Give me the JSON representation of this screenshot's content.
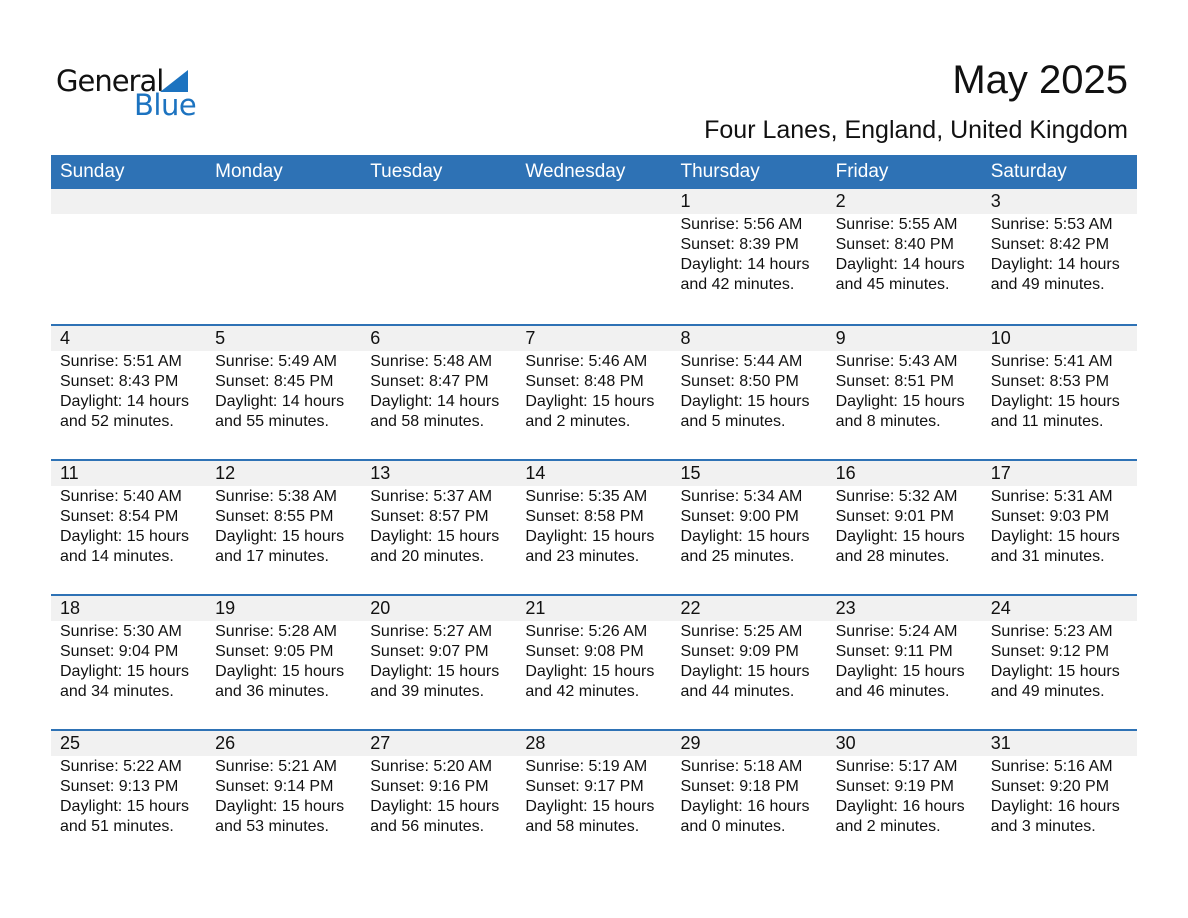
{
  "logo": {
    "line1": "General",
    "line2": "Blue"
  },
  "header": {
    "title": "May 2025",
    "location": "Four Lanes, England, United Kingdom"
  },
  "colors": {
    "header_bg": "#2e72b5",
    "date_strip": "#f1f1f1",
    "brand": "#1c73c0"
  },
  "weekdays": [
    "Sunday",
    "Monday",
    "Tuesday",
    "Wednesday",
    "Thursday",
    "Friday",
    "Saturday"
  ],
  "weeks": [
    [
      null,
      null,
      null,
      null,
      {
        "date": "1",
        "sunrise": "Sunrise: 5:56 AM",
        "sunset": "Sunset: 8:39 PM",
        "daylight1": "Daylight: 14 hours",
        "daylight2": "and 42 minutes."
      },
      {
        "date": "2",
        "sunrise": "Sunrise: 5:55 AM",
        "sunset": "Sunset: 8:40 PM",
        "daylight1": "Daylight: 14 hours",
        "daylight2": "and 45 minutes."
      },
      {
        "date": "3",
        "sunrise": "Sunrise: 5:53 AM",
        "sunset": "Sunset: 8:42 PM",
        "daylight1": "Daylight: 14 hours",
        "daylight2": "and 49 minutes."
      }
    ],
    [
      {
        "date": "4",
        "sunrise": "Sunrise: 5:51 AM",
        "sunset": "Sunset: 8:43 PM",
        "daylight1": "Daylight: 14 hours",
        "daylight2": "and 52 minutes."
      },
      {
        "date": "5",
        "sunrise": "Sunrise: 5:49 AM",
        "sunset": "Sunset: 8:45 PM",
        "daylight1": "Daylight: 14 hours",
        "daylight2": "and 55 minutes."
      },
      {
        "date": "6",
        "sunrise": "Sunrise: 5:48 AM",
        "sunset": "Sunset: 8:47 PM",
        "daylight1": "Daylight: 14 hours",
        "daylight2": "and 58 minutes."
      },
      {
        "date": "7",
        "sunrise": "Sunrise: 5:46 AM",
        "sunset": "Sunset: 8:48 PM",
        "daylight1": "Daylight: 15 hours",
        "daylight2": "and 2 minutes."
      },
      {
        "date": "8",
        "sunrise": "Sunrise: 5:44 AM",
        "sunset": "Sunset: 8:50 PM",
        "daylight1": "Daylight: 15 hours",
        "daylight2": "and 5 minutes."
      },
      {
        "date": "9",
        "sunrise": "Sunrise: 5:43 AM",
        "sunset": "Sunset: 8:51 PM",
        "daylight1": "Daylight: 15 hours",
        "daylight2": "and 8 minutes."
      },
      {
        "date": "10",
        "sunrise": "Sunrise: 5:41 AM",
        "sunset": "Sunset: 8:53 PM",
        "daylight1": "Daylight: 15 hours",
        "daylight2": "and 11 minutes."
      }
    ],
    [
      {
        "date": "11",
        "sunrise": "Sunrise: 5:40 AM",
        "sunset": "Sunset: 8:54 PM",
        "daylight1": "Daylight: 15 hours",
        "daylight2": "and 14 minutes."
      },
      {
        "date": "12",
        "sunrise": "Sunrise: 5:38 AM",
        "sunset": "Sunset: 8:55 PM",
        "daylight1": "Daylight: 15 hours",
        "daylight2": "and 17 minutes."
      },
      {
        "date": "13",
        "sunrise": "Sunrise: 5:37 AM",
        "sunset": "Sunset: 8:57 PM",
        "daylight1": "Daylight: 15 hours",
        "daylight2": "and 20 minutes."
      },
      {
        "date": "14",
        "sunrise": "Sunrise: 5:35 AM",
        "sunset": "Sunset: 8:58 PM",
        "daylight1": "Daylight: 15 hours",
        "daylight2": "and 23 minutes."
      },
      {
        "date": "15",
        "sunrise": "Sunrise: 5:34 AM",
        "sunset": "Sunset: 9:00 PM",
        "daylight1": "Daylight: 15 hours",
        "daylight2": "and 25 minutes."
      },
      {
        "date": "16",
        "sunrise": "Sunrise: 5:32 AM",
        "sunset": "Sunset: 9:01 PM",
        "daylight1": "Daylight: 15 hours",
        "daylight2": "and 28 minutes."
      },
      {
        "date": "17",
        "sunrise": "Sunrise: 5:31 AM",
        "sunset": "Sunset: 9:03 PM",
        "daylight1": "Daylight: 15 hours",
        "daylight2": "and 31 minutes."
      }
    ],
    [
      {
        "date": "18",
        "sunrise": "Sunrise: 5:30 AM",
        "sunset": "Sunset: 9:04 PM",
        "daylight1": "Daylight: 15 hours",
        "daylight2": "and 34 minutes."
      },
      {
        "date": "19",
        "sunrise": "Sunrise: 5:28 AM",
        "sunset": "Sunset: 9:05 PM",
        "daylight1": "Daylight: 15 hours",
        "daylight2": "and 36 minutes."
      },
      {
        "date": "20",
        "sunrise": "Sunrise: 5:27 AM",
        "sunset": "Sunset: 9:07 PM",
        "daylight1": "Daylight: 15 hours",
        "daylight2": "and 39 minutes."
      },
      {
        "date": "21",
        "sunrise": "Sunrise: 5:26 AM",
        "sunset": "Sunset: 9:08 PM",
        "daylight1": "Daylight: 15 hours",
        "daylight2": "and 42 minutes."
      },
      {
        "date": "22",
        "sunrise": "Sunrise: 5:25 AM",
        "sunset": "Sunset: 9:09 PM",
        "daylight1": "Daylight: 15 hours",
        "daylight2": "and 44 minutes."
      },
      {
        "date": "23",
        "sunrise": "Sunrise: 5:24 AM",
        "sunset": "Sunset: 9:11 PM",
        "daylight1": "Daylight: 15 hours",
        "daylight2": "and 46 minutes."
      },
      {
        "date": "24",
        "sunrise": "Sunrise: 5:23 AM",
        "sunset": "Sunset: 9:12 PM",
        "daylight1": "Daylight: 15 hours",
        "daylight2": "and 49 minutes."
      }
    ],
    [
      {
        "date": "25",
        "sunrise": "Sunrise: 5:22 AM",
        "sunset": "Sunset: 9:13 PM",
        "daylight1": "Daylight: 15 hours",
        "daylight2": "and 51 minutes."
      },
      {
        "date": "26",
        "sunrise": "Sunrise: 5:21 AM",
        "sunset": "Sunset: 9:14 PM",
        "daylight1": "Daylight: 15 hours",
        "daylight2": "and 53 minutes."
      },
      {
        "date": "27",
        "sunrise": "Sunrise: 5:20 AM",
        "sunset": "Sunset: 9:16 PM",
        "daylight1": "Daylight: 15 hours",
        "daylight2": "and 56 minutes."
      },
      {
        "date": "28",
        "sunrise": "Sunrise: 5:19 AM",
        "sunset": "Sunset: 9:17 PM",
        "daylight1": "Daylight: 15 hours",
        "daylight2": "and 58 minutes."
      },
      {
        "date": "29",
        "sunrise": "Sunrise: 5:18 AM",
        "sunset": "Sunset: 9:18 PM",
        "daylight1": "Daylight: 16 hours",
        "daylight2": "and 0 minutes."
      },
      {
        "date": "30",
        "sunrise": "Sunrise: 5:17 AM",
        "sunset": "Sunset: 9:19 PM",
        "daylight1": "Daylight: 16 hours",
        "daylight2": "and 2 minutes."
      },
      {
        "date": "31",
        "sunrise": "Sunrise: 5:16 AM",
        "sunset": "Sunset: 9:20 PM",
        "daylight1": "Daylight: 16 hours",
        "daylight2": "and 3 minutes."
      }
    ]
  ]
}
